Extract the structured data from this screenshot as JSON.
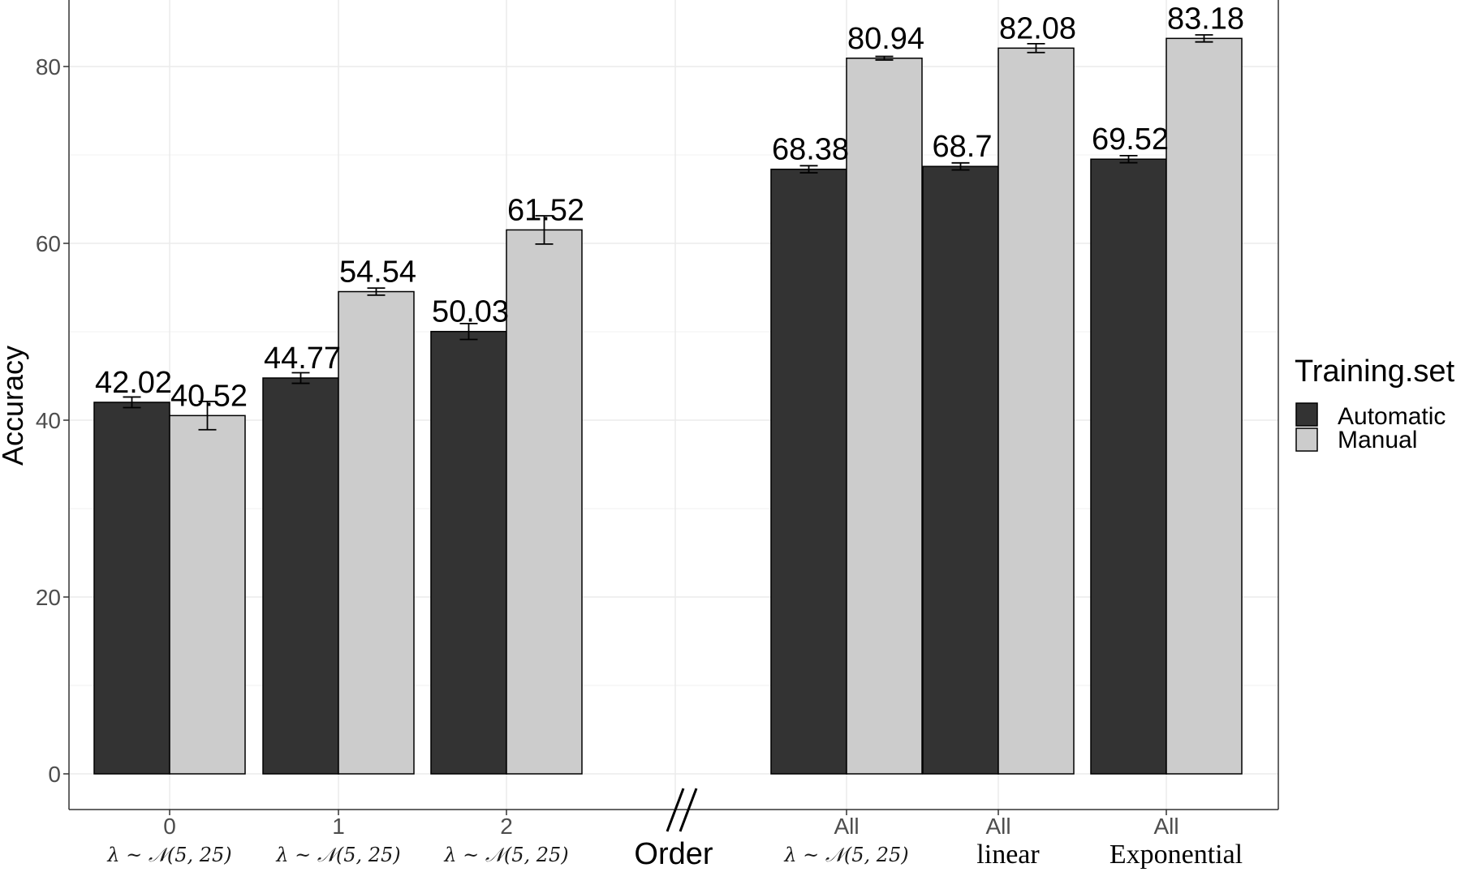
{
  "chart_data": {
    "type": "bar",
    "ylabel": "Accuracy",
    "xlabel": "Order",
    "ylim": [
      0,
      90
    ],
    "yticks": [
      0,
      20,
      40,
      60,
      80
    ],
    "grid": true,
    "legend": {
      "title": "Training.set",
      "position": "right",
      "entries": [
        "Automatic",
        "Manual"
      ]
    },
    "colors": {
      "Automatic": "#333333",
      "Manual": "#cccccc"
    },
    "categories": [
      {
        "label": "0",
        "sublabel": "λ ~ 𝒩(5, 25)"
      },
      {
        "label": "1",
        "sublabel": "λ ~ 𝒩(5, 25)"
      },
      {
        "label": "2",
        "sublabel": "λ ~ 𝒩(5, 25)"
      },
      {
        "label": "All",
        "sublabel": "λ ~ 𝒩(5, 25)"
      },
      {
        "label": "All",
        "sublabel": "linear"
      },
      {
        "label": "All",
        "sublabel": "Exponential"
      }
    ],
    "series": [
      {
        "name": "Automatic",
        "values": [
          42.02,
          44.77,
          50.03,
          68.38,
          68.7,
          69.52
        ],
        "labels": [
          "42.02",
          "44.77",
          "50.03",
          "68.38",
          "68.7",
          "69.52"
        ],
        "errors": [
          0.6,
          0.6,
          0.9,
          0.4,
          0.4,
          0.4
        ]
      },
      {
        "name": "Manual",
        "values": [
          40.52,
          54.54,
          61.52,
          80.94,
          82.08,
          83.18
        ],
        "labels": [
          "40.52",
          "54.54",
          "61.52",
          "80.94",
          "82.08",
          "83.18"
        ],
        "errors": [
          1.6,
          0.4,
          1.6,
          0.2,
          0.5,
          0.4
        ]
      }
    ]
  }
}
